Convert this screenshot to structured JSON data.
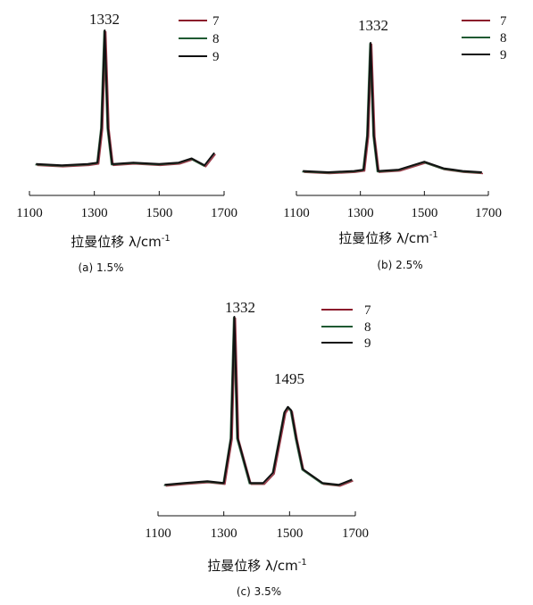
{
  "colors": {
    "series_7": "#8b1a2b",
    "series_8": "#1f5a32",
    "series_9": "#111111"
  },
  "chart_data": [
    {
      "type": "line",
      "caption": "(a) 1.5%",
      "xlabel": "拉曼位移 λ/cm",
      "xlabel_sup": "-1",
      "xlim": [
        1100,
        1700
      ],
      "xticks": [
        "1100",
        "1300",
        "1500",
        "1700"
      ],
      "y_axis_shown": false,
      "legend_position": "top-right",
      "series": [
        {
          "name": "7"
        },
        {
          "name": "8"
        },
        {
          "name": "9"
        }
      ],
      "peaks": [
        {
          "x": 1332,
          "label": "1332"
        }
      ],
      "x": [
        1120,
        1200,
        1280,
        1310,
        1322,
        1332,
        1342,
        1355,
        1420,
        1500,
        1560,
        1600,
        1640,
        1670
      ],
      "y": [
        0.04,
        0.03,
        0.04,
        0.05,
        0.3,
        1.0,
        0.3,
        0.04,
        0.05,
        0.04,
        0.05,
        0.08,
        0.03,
        0.12
      ]
    },
    {
      "type": "line",
      "caption": "(b) 2.5%",
      "xlabel": "拉曼位移 λ/cm",
      "xlabel_sup": "-1",
      "xlim": [
        1100,
        1700
      ],
      "xticks": [
        "1100",
        "1300",
        "1500",
        "1700"
      ],
      "y_axis_shown": false,
      "legend_position": "top-right",
      "series": [
        {
          "name": "7"
        },
        {
          "name": "8"
        },
        {
          "name": "9"
        }
      ],
      "peaks": [
        {
          "x": 1332,
          "label": "1332"
        }
      ],
      "x": [
        1120,
        1200,
        1280,
        1310,
        1322,
        1332,
        1342,
        1355,
        1420,
        1500,
        1560,
        1620,
        1680
      ],
      "y": [
        0.03,
        0.02,
        0.03,
        0.04,
        0.3,
        1.0,
        0.3,
        0.03,
        0.04,
        0.1,
        0.05,
        0.03,
        0.02
      ]
    },
    {
      "type": "line",
      "caption": "(c) 3.5%",
      "xlabel": "拉曼位移 λ/cm",
      "xlabel_sup": "-1",
      "xlim": [
        1100,
        1700
      ],
      "xticks": [
        "1100",
        "1300",
        "1500",
        "1700"
      ],
      "y_axis_shown": false,
      "legend_position": "top-right",
      "series": [
        {
          "name": "7"
        },
        {
          "name": "8"
        },
        {
          "name": "9"
        }
      ],
      "peaks": [
        {
          "x": 1332,
          "label": "1332"
        },
        {
          "x": 1495,
          "label": "1495"
        }
      ],
      "x": [
        1120,
        1180,
        1250,
        1300,
        1322,
        1332,
        1342,
        1380,
        1420,
        1450,
        1470,
        1485,
        1495,
        1505,
        1520,
        1540,
        1600,
        1650,
        1690
      ],
      "y": [
        0.03,
        0.04,
        0.05,
        0.04,
        0.3,
        1.0,
        0.3,
        0.04,
        0.04,
        0.1,
        0.3,
        0.45,
        0.48,
        0.46,
        0.3,
        0.12,
        0.04,
        0.03,
        0.06
      ]
    }
  ]
}
